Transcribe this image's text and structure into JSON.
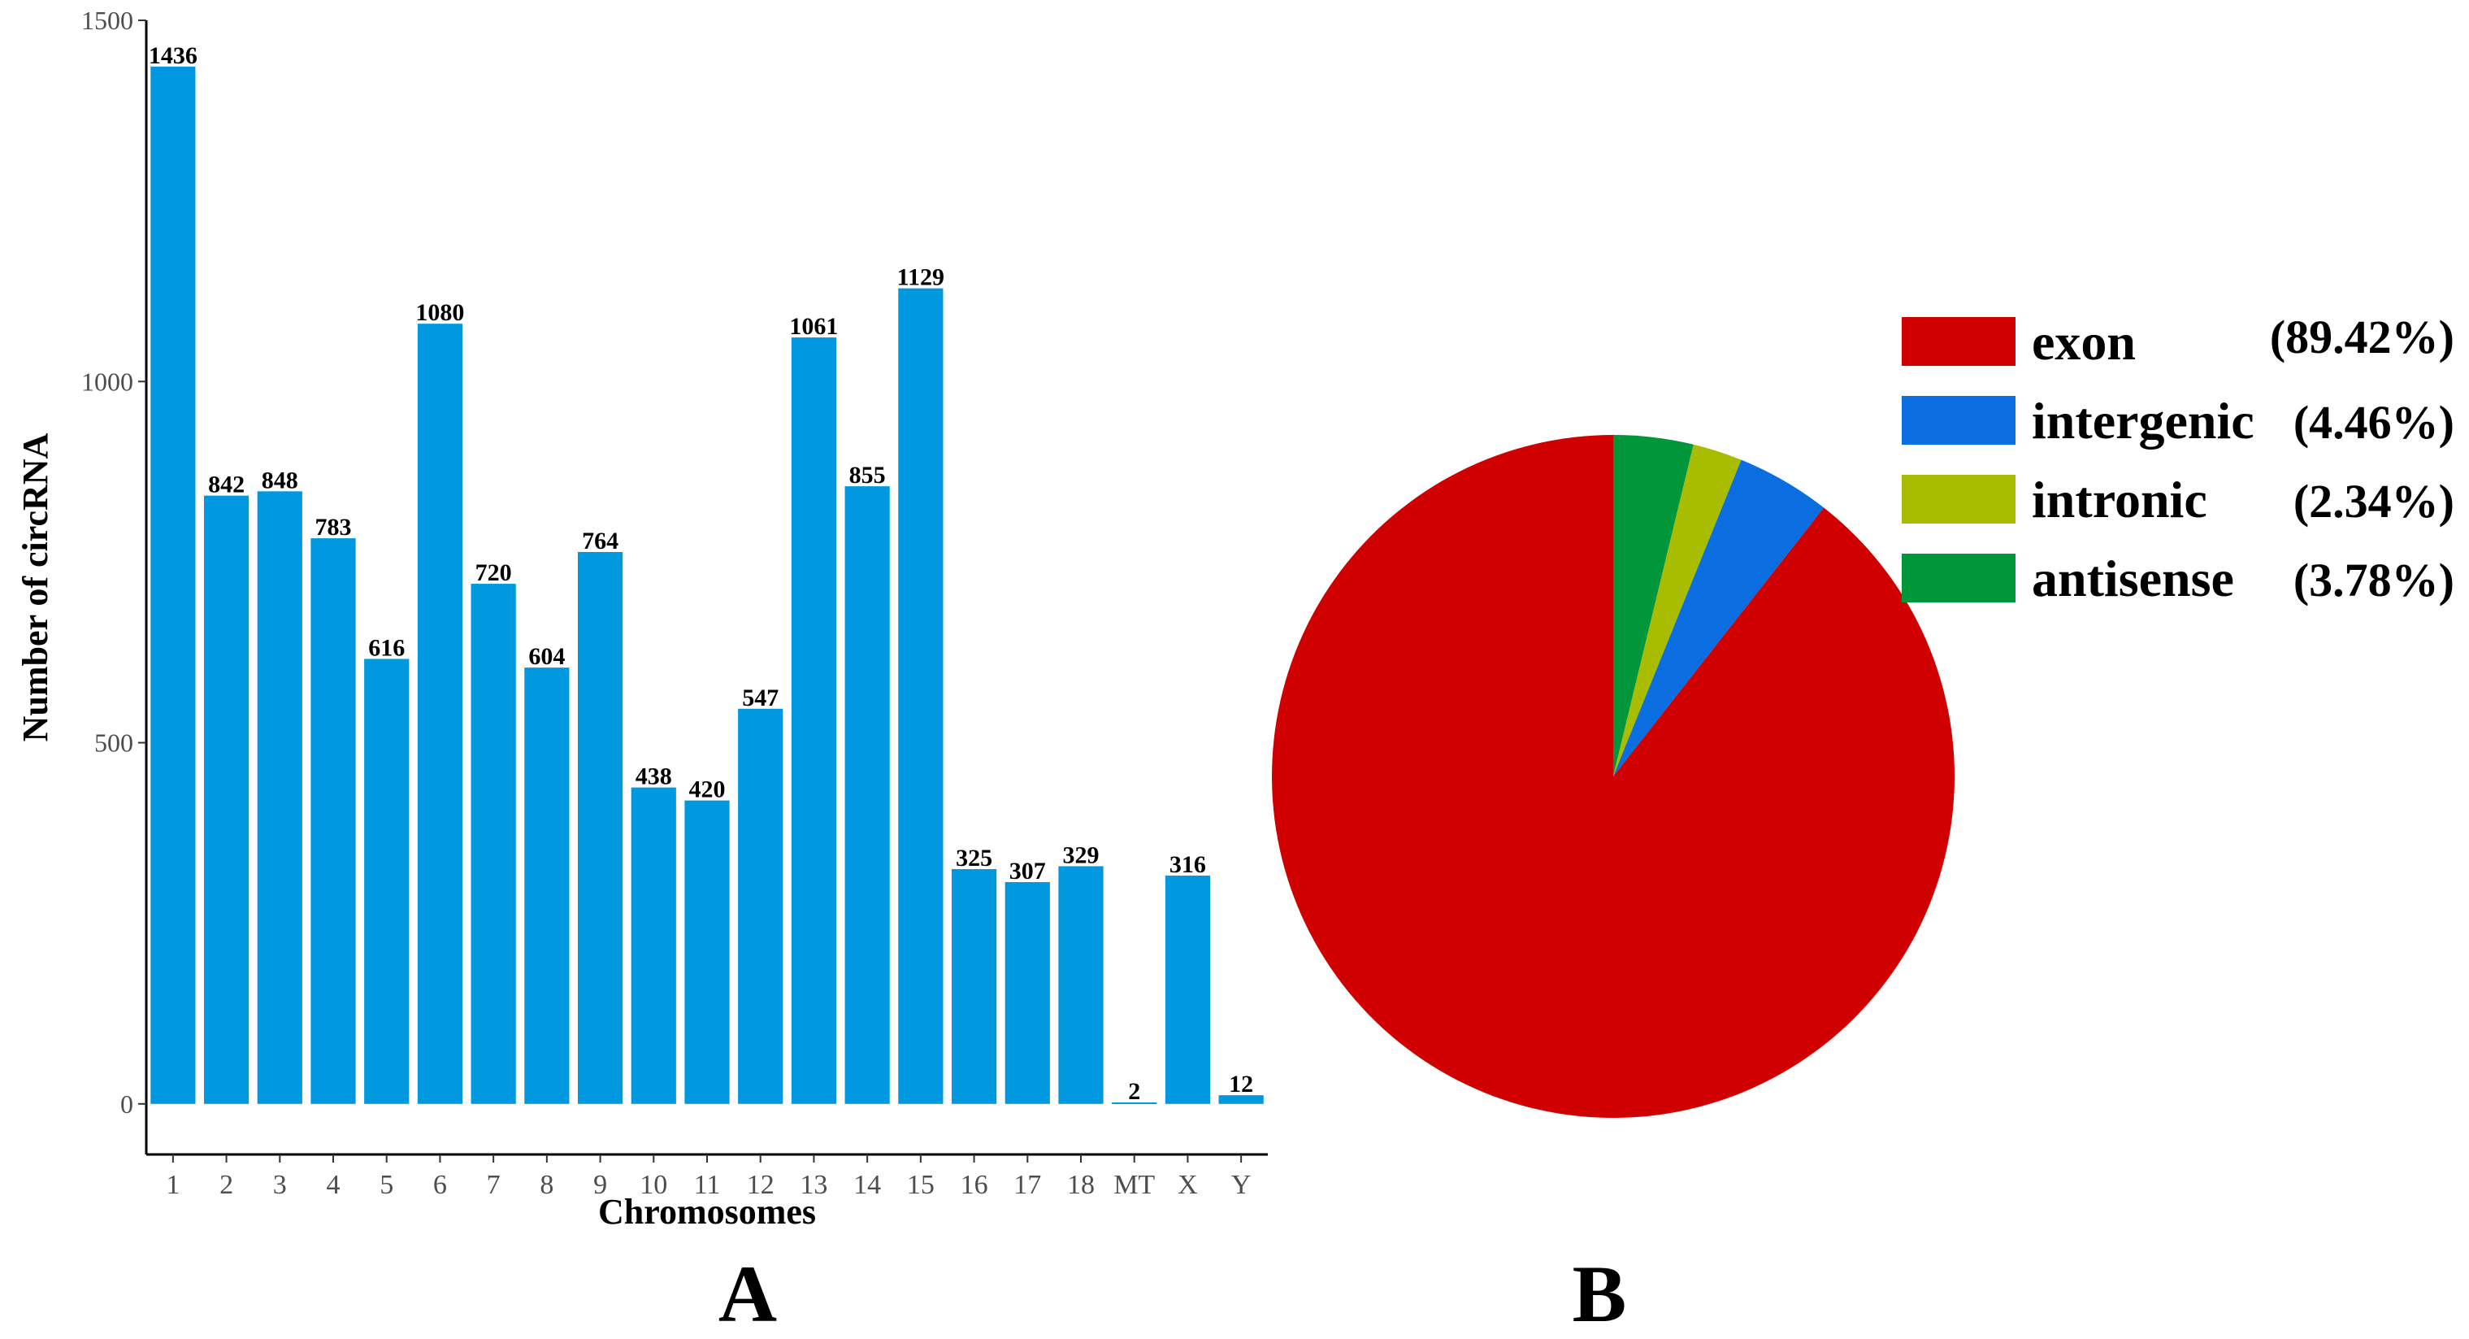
{
  "chart_data": [
    {
      "type": "bar",
      "panel_label": "A",
      "categories": [
        "1",
        "2",
        "3",
        "4",
        "5",
        "6",
        "7",
        "8",
        "9",
        "10",
        "11",
        "12",
        "13",
        "14",
        "15",
        "16",
        "17",
        "18",
        "MT",
        "X",
        "Y"
      ],
      "values": [
        1436,
        842,
        848,
        783,
        616,
        1080,
        720,
        604,
        764,
        438,
        420,
        547,
        1061,
        855,
        1129,
        325,
        307,
        329,
        2,
        316,
        12
      ],
      "data_labels": [
        "1436",
        "842",
        "848",
        "783",
        "616",
        "1080",
        "720",
        "604",
        "764",
        "438",
        "420",
        "547",
        "1061",
        "855",
        "1129",
        "325",
        "307",
        "329",
        "2",
        "316",
        "12"
      ],
      "xlabel": "Chromosomes",
      "ylabel": "Number of circRNA",
      "ylim": [
        -70,
        1500
      ],
      "yticks": [
        0,
        500,
        1000,
        1500
      ],
      "ytick_labels": [
        "0",
        "500",
        "1000",
        "1500"
      ],
      "bar_color": "#0099e0",
      "grid": false
    },
    {
      "type": "pie",
      "panel_label": "B",
      "slices": [
        {
          "name": "exon",
          "value": 89.42,
          "label": "(89.42%)",
          "color": "#d10000"
        },
        {
          "name": "intergenic",
          "value": 4.46,
          "label": "(4.46%)",
          "color": "#0b6ee0"
        },
        {
          "name": "intronic",
          "value": 2.34,
          "label": "(2.34%)",
          "color": "#a8bd00"
        },
        {
          "name": "antisense",
          "value": 3.78,
          "label": "(3.78%)",
          "color": "#00963a"
        }
      ],
      "start": "12 o'clock",
      "direction": "counter-clockwise",
      "legend_position": "top-right"
    }
  ]
}
